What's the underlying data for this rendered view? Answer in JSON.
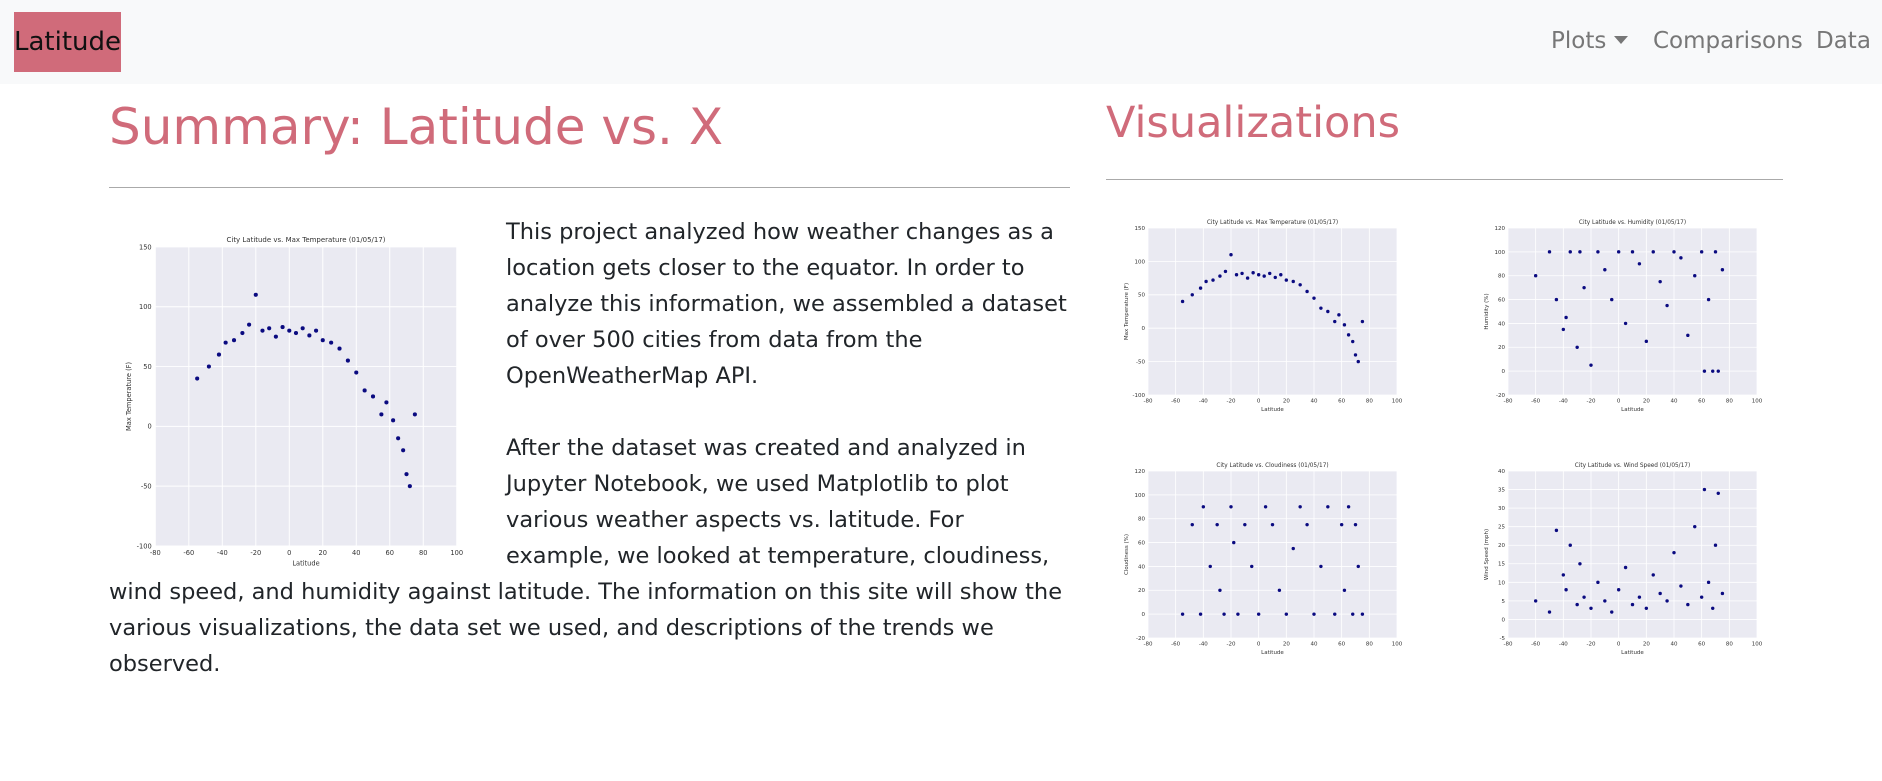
{
  "navbar": {
    "brand": "Latitude",
    "links": [
      "Plots",
      "Comparisons",
      "Data"
    ]
  },
  "summary": {
    "title": "Summary: Latitude vs. X",
    "paragraphs": [
      "This project analyzed how weather changes as a location gets closer to the equator. In order to analyze this information, we assembled a dataset of over 500 cities from data from the OpenWeatherMap API.",
      "After the dataset was created and analyzed in Jupyter Notebook, we used Matplotlib to plot various weather aspects vs. latitude. For example, we looked at temperature, cloudiness, wind speed, and humidity against latitude. The information on this site will show the various visualizations, the data set we used, and descriptions of the trends we observed."
    ]
  },
  "visualizations": {
    "title": "Visualizations"
  },
  "chart_data": [
    {
      "type": "scatter",
      "title": "City Latitude vs. Max Temperature (01/05/17)",
      "x_label": "Latitude",
      "y_label": "Max Temperature (F)",
      "color": "#0a0a80",
      "x": [
        -55,
        -48,
        -42,
        -38,
        -33,
        -28,
        -24,
        -20,
        -16,
        -12,
        -8,
        -4,
        0,
        4,
        8,
        12,
        16,
        20,
        25,
        30,
        35,
        40,
        45,
        50,
        55,
        58,
        62,
        65,
        68,
        70,
        72,
        75
      ],
      "values": [
        40,
        50,
        60,
        70,
        72,
        78,
        85,
        110,
        80,
        82,
        75,
        83,
        80,
        78,
        82,
        76,
        80,
        72,
        70,
        65,
        55,
        45,
        30,
        25,
        10,
        20,
        5,
        -10,
        -20,
        -40,
        -50,
        10
      ],
      "xlim": [
        -80,
        100
      ],
      "xticks": [
        -80,
        -60,
        -40,
        -20,
        0,
        20,
        40,
        60,
        80,
        100
      ],
      "ylim": [
        -100,
        150
      ],
      "yticks": [
        -100,
        -50,
        0,
        50,
        100,
        150
      ],
      "grid": true
    },
    {
      "type": "scatter",
      "title": "City Latitude vs. Humidity (01/05/17)",
      "x_label": "Latitude",
      "y_label": "Humidity (%)",
      "color": "#0a0a80",
      "x": [
        -60,
        -50,
        -45,
        -40,
        -38,
        -35,
        -30,
        -28,
        -25,
        -20,
        -15,
        -10,
        -5,
        0,
        5,
        10,
        15,
        20,
        25,
        30,
        35,
        40,
        45,
        50,
        55,
        60,
        62,
        65,
        68,
        70,
        72,
        75
      ],
      "values": [
        80,
        100,
        60,
        35,
        45,
        100,
        20,
        100,
        70,
        5,
        100,
        85,
        60,
        100,
        40,
        100,
        90,
        25,
        100,
        75,
        55,
        100,
        95,
        30,
        80,
        100,
        0,
        60,
        0,
        100,
        0,
        85
      ],
      "xlim": [
        -80,
        100
      ],
      "xticks": [
        -80,
        -60,
        -40,
        -20,
        0,
        20,
        40,
        60,
        80,
        100
      ],
      "ylim": [
        -20,
        120
      ],
      "yticks": [
        -20,
        0,
        20,
        40,
        60,
        80,
        100,
        120
      ],
      "grid": true
    },
    {
      "type": "scatter",
      "title": "City Latitude vs. Cloudiness (01/05/17)",
      "x_label": "Latitude",
      "y_label": "Cloudiness (%)",
      "color": "#0a0a80",
      "x": [
        -55,
        -48,
        -42,
        -40,
        -35,
        -30,
        -28,
        -25,
        -20,
        -18,
        -15,
        -10,
        -5,
        0,
        5,
        10,
        15,
        20,
        25,
        30,
        35,
        40,
        45,
        50,
        55,
        60,
        62,
        65,
        68,
        70,
        72,
        75
      ],
      "values": [
        0,
        75,
        0,
        90,
        40,
        75,
        20,
        0,
        90,
        60,
        0,
        75,
        40,
        0,
        90,
        75,
        20,
        0,
        55,
        90,
        75,
        0,
        40,
        90,
        0,
        75,
        20,
        90,
        0,
        75,
        40,
        0
      ],
      "xlim": [
        -80,
        100
      ],
      "xticks": [
        -80,
        -60,
        -40,
        -20,
        0,
        20,
        40,
        60,
        80,
        100
      ],
      "ylim": [
        -20,
        120
      ],
      "yticks": [
        -20,
        0,
        20,
        40,
        60,
        80,
        100,
        120
      ],
      "grid": true
    },
    {
      "type": "scatter",
      "title": "City Latitude vs. Wind Speed (01/05/17)",
      "x_label": "Latitude",
      "y_label": "Wind Speed (mph)",
      "color": "#0a0a80",
      "x": [
        -60,
        -50,
        -45,
        -40,
        -38,
        -35,
        -30,
        -28,
        -25,
        -20,
        -15,
        -10,
        -5,
        0,
        5,
        10,
        15,
        20,
        25,
        30,
        35,
        40,
        45,
        50,
        55,
        60,
        62,
        65,
        68,
        70,
        72,
        75
      ],
      "values": [
        5,
        2,
        24,
        12,
        8,
        20,
        4,
        15,
        6,
        3,
        10,
        5,
        2,
        8,
        14,
        4,
        6,
        3,
        12,
        7,
        5,
        18,
        9,
        4,
        25,
        6,
        35,
        10,
        3,
        20,
        34,
        7
      ],
      "xlim": [
        -80,
        100
      ],
      "xticks": [
        -80,
        -60,
        -40,
        -20,
        0,
        20,
        40,
        60,
        80,
        100
      ],
      "ylim": [
        -5,
        40
      ],
      "yticks": [
        -5,
        0,
        5,
        10,
        15,
        20,
        25,
        30,
        35,
        40
      ],
      "grid": true
    }
  ]
}
